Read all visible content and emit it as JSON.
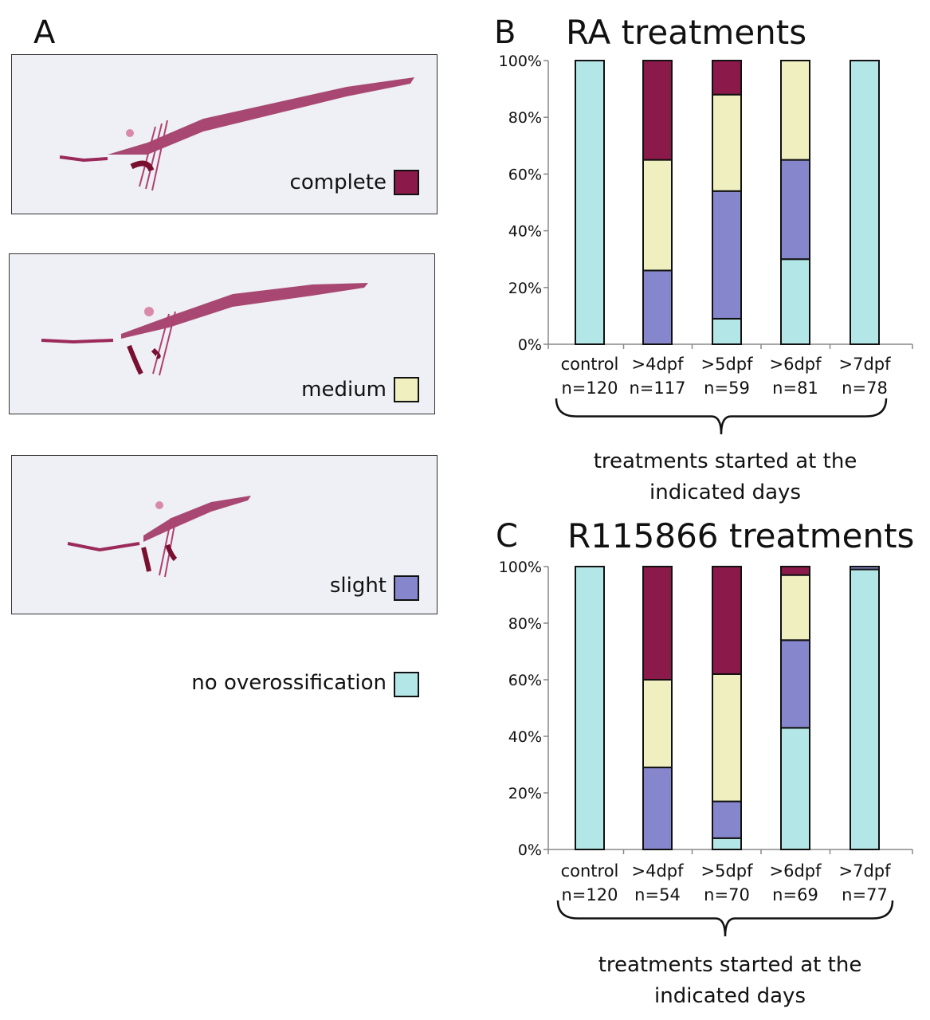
{
  "panels": {
    "a": {
      "letter": "A"
    },
    "b": {
      "letter": "B"
    },
    "c": {
      "letter": "C"
    }
  },
  "legend": {
    "complete": "complete",
    "medium": "medium",
    "slight": "slight",
    "none": "no overossification"
  },
  "colors": {
    "complete": "#8b1a4a",
    "medium": "#efefc0",
    "slight": "#8686cc",
    "none": "#b3e6e6"
  },
  "chart_data": [
    {
      "type": "bar",
      "stacked": true,
      "title": "RA treatments",
      "categories": [
        "control",
        ">4dpf",
        ">5dpf",
        ">6dpf",
        ">7dpf"
      ],
      "n_labels": [
        "n=120",
        "n=117",
        "n=59",
        "n=81",
        "n=78"
      ],
      "yticks": [
        "0%",
        "20%",
        "40%",
        "60%",
        "80%",
        "100%"
      ],
      "ylim": [
        0,
        100
      ],
      "series": [
        {
          "name": "no overossification",
          "values": [
            100,
            0,
            9,
            30,
            100
          ]
        },
        {
          "name": "slight",
          "values": [
            0,
            26,
            45,
            35,
            0
          ]
        },
        {
          "name": "medium",
          "values": [
            0,
            39,
            34,
            35,
            0
          ]
        },
        {
          "name": "complete",
          "values": [
            0,
            35,
            12,
            0,
            0
          ]
        }
      ],
      "annotation": "treatments started at the indicated days"
    },
    {
      "type": "bar",
      "stacked": true,
      "title": "R115866 treatments",
      "categories": [
        "control",
        ">4dpf",
        ">5dpf",
        ">6dpf",
        ">7dpf"
      ],
      "n_labels": [
        "n=120",
        "n=54",
        "n=70",
        "n=69",
        "n=77"
      ],
      "yticks": [
        "0%",
        "20%",
        "40%",
        "60%",
        "80%",
        "100%"
      ],
      "ylim": [
        0,
        100
      ],
      "series": [
        {
          "name": "no overossification",
          "values": [
            100,
            0,
            4,
            43,
            99
          ]
        },
        {
          "name": "slight",
          "values": [
            0,
            29,
            13,
            31,
            1
          ]
        },
        {
          "name": "medium",
          "values": [
            0,
            31,
            45,
            23,
            0
          ]
        },
        {
          "name": "complete",
          "values": [
            0,
            40,
            38,
            3,
            0
          ]
        }
      ],
      "annotation": "treatments started at the indicated days"
    }
  ]
}
